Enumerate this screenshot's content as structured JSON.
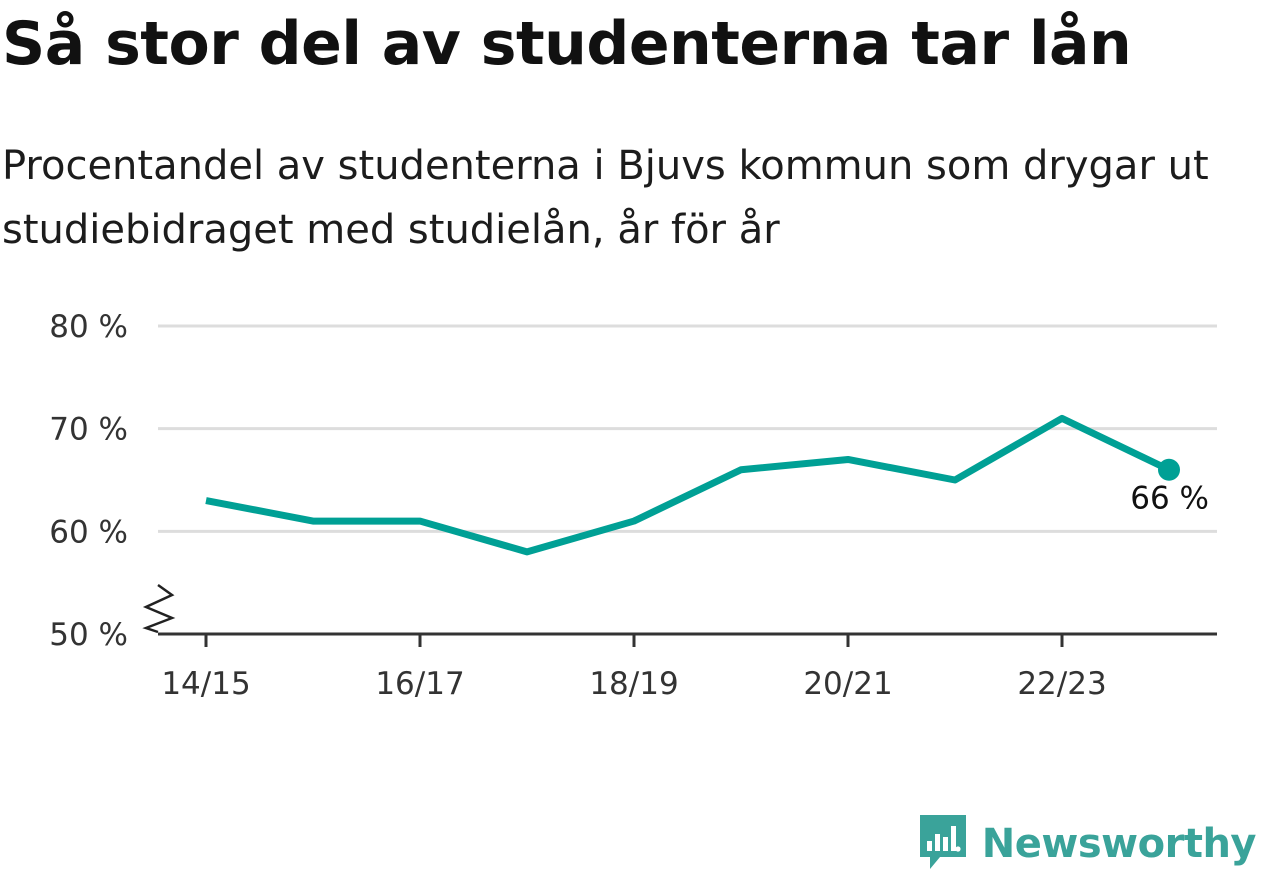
{
  "header": {
    "title": "Så stor del av studenterna tar lån",
    "subtitle": "Procentandel av studenterna i Bjuvs kommun som drygar ut studiebidraget med studielån, år för år"
  },
  "chart_data": {
    "type": "line",
    "title": "Så stor del av studenterna tar lån",
    "subtitle": "Procentandel av studenterna i Bjuvs kommun som drygar ut studiebidraget med studielån, år för år",
    "x": [
      "14/15",
      "15/16",
      "16/17",
      "17/18",
      "18/19",
      "19/20",
      "20/21",
      "21/22",
      "22/23",
      "23/24"
    ],
    "x_tick_labels": [
      "14/15",
      "16/17",
      "18/19",
      "20/21",
      "22/23"
    ],
    "series": [
      {
        "values": [
          63,
          61,
          61,
          58,
          61,
          66,
          67,
          65,
          71,
          66
        ],
        "color": "#00a095"
      }
    ],
    "y_ticks": [
      50,
      60,
      70,
      80
    ],
    "y_tick_labels": [
      "50 %",
      "60 %",
      "70 %",
      "80 %"
    ],
    "ylim": [
      50,
      80
    ],
    "y_axis_break": true,
    "grid": true,
    "last_value_label": "66 %",
    "xlabel": "",
    "ylabel": ""
  },
  "colors": {
    "line": "#00a095",
    "grid": "#dddddd",
    "axis": "#333333",
    "brand": "#3aa39a"
  },
  "branding": {
    "name": "Newsworthy",
    "icon": "newsworthy-bar-chart-icon"
  }
}
